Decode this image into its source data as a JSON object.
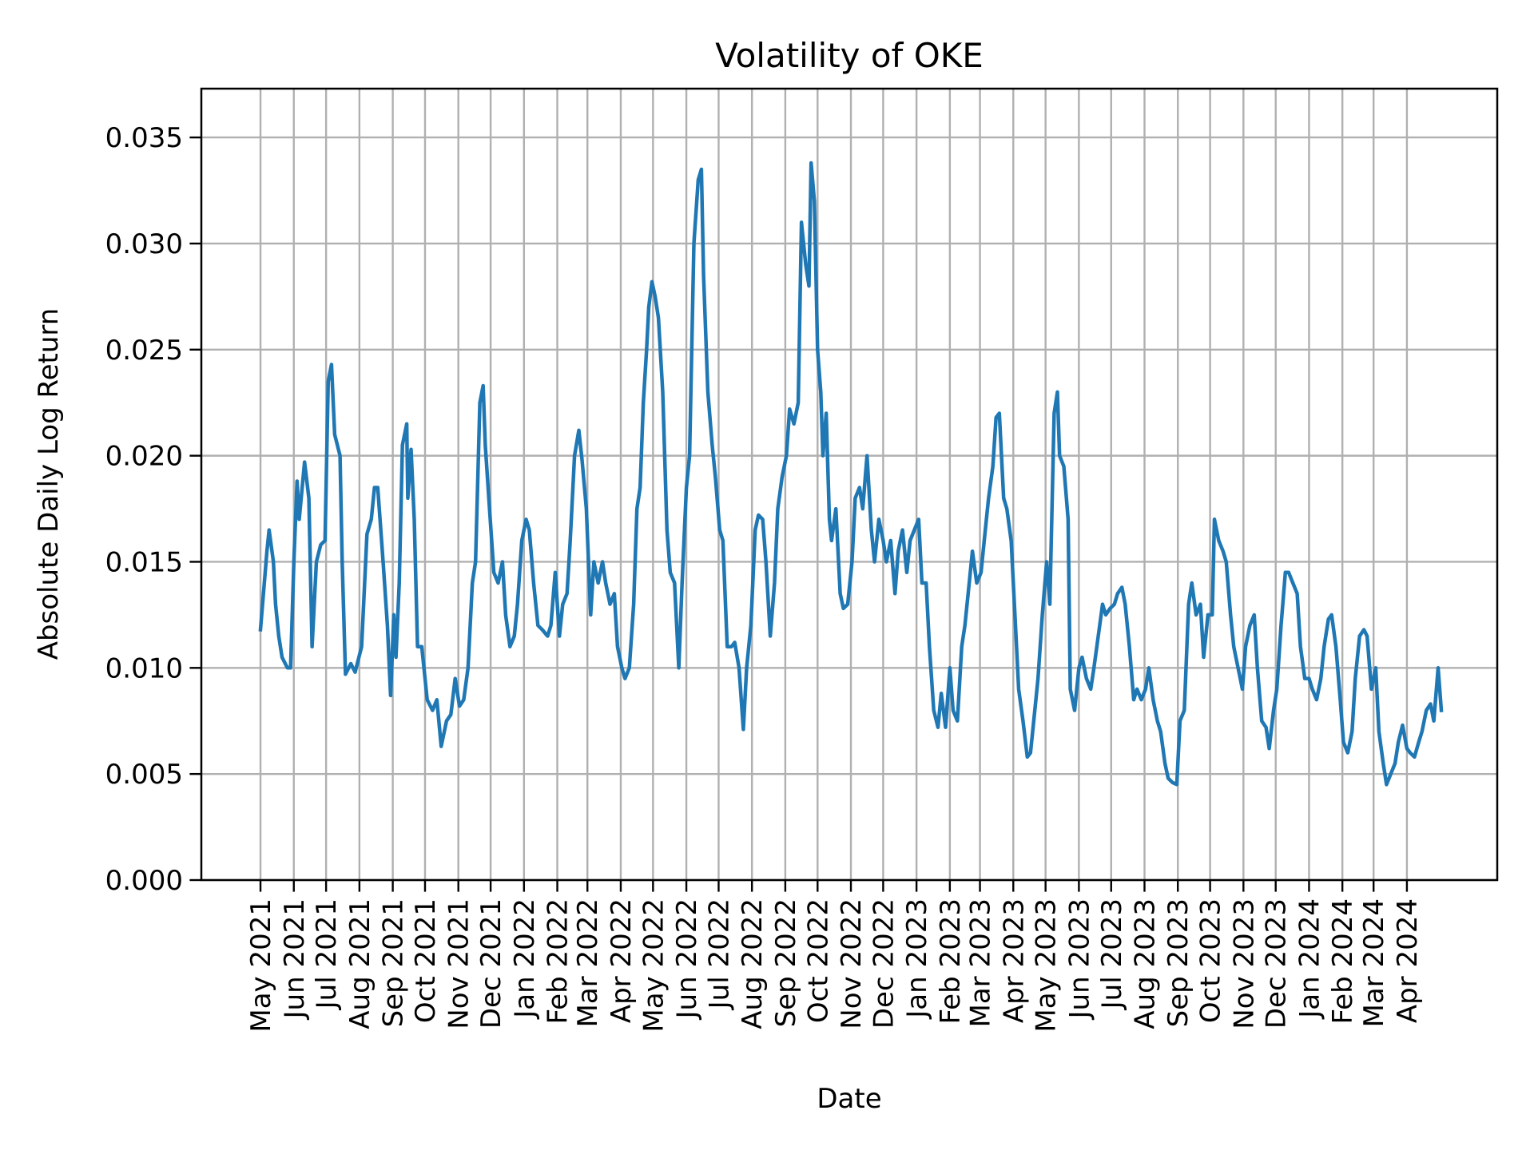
{
  "chart_data": {
    "type": "line",
    "title": "Volatility of OKE",
    "xlabel": "Date",
    "ylabel": "Absolute Daily Log Return",
    "x_origin": "2021-05-01",
    "x_unit": "days since x_origin",
    "xlim_days": [
      -55,
      1150
    ],
    "ylim": [
      0,
      0.0373
    ],
    "grid": true,
    "line_color": "#1f77b4",
    "yticks": [
      {
        "value": 0.0,
        "label": "0.000"
      },
      {
        "value": 0.005,
        "label": "0.005"
      },
      {
        "value": 0.01,
        "label": "0.010"
      },
      {
        "value": 0.015,
        "label": "0.015"
      },
      {
        "value": 0.02,
        "label": "0.020"
      },
      {
        "value": 0.025,
        "label": "0.025"
      },
      {
        "value": 0.03,
        "label": "0.030"
      },
      {
        "value": 0.035,
        "label": "0.035"
      }
    ],
    "xticks": [
      {
        "date": "2021-05-01",
        "label": "May 2021"
      },
      {
        "date": "2021-06-01",
        "label": "Jun 2021"
      },
      {
        "date": "2021-07-01",
        "label": "Jul 2021"
      },
      {
        "date": "2021-08-01",
        "label": "Aug 2021"
      },
      {
        "date": "2021-09-01",
        "label": "Sep 2021"
      },
      {
        "date": "2021-10-01",
        "label": "Oct 2021"
      },
      {
        "date": "2021-11-01",
        "label": "Nov 2021"
      },
      {
        "date": "2021-12-01",
        "label": "Dec 2021"
      },
      {
        "date": "2022-01-01",
        "label": "Jan 2022"
      },
      {
        "date": "2022-02-01",
        "label": "Feb 2022"
      },
      {
        "date": "2022-03-01",
        "label": "Mar 2022"
      },
      {
        "date": "2022-04-01",
        "label": "Apr 2022"
      },
      {
        "date": "2022-05-01",
        "label": "May 2022"
      },
      {
        "date": "2022-06-01",
        "label": "Jun 2022"
      },
      {
        "date": "2022-07-01",
        "label": "Jul 2022"
      },
      {
        "date": "2022-08-01",
        "label": "Aug 2022"
      },
      {
        "date": "2022-09-01",
        "label": "Sep 2022"
      },
      {
        "date": "2022-10-01",
        "label": "Oct 2022"
      },
      {
        "date": "2022-11-01",
        "label": "Nov 2022"
      },
      {
        "date": "2022-12-01",
        "label": "Dec 2022"
      },
      {
        "date": "2023-01-01",
        "label": "Jan 2023"
      },
      {
        "date": "2023-02-01",
        "label": "Feb 2023"
      },
      {
        "date": "2023-03-01",
        "label": "Mar 2023"
      },
      {
        "date": "2023-04-01",
        "label": "Apr 2023"
      },
      {
        "date": "2023-05-01",
        "label": "May 2023"
      },
      {
        "date": "2023-06-01",
        "label": "Jun 2023"
      },
      {
        "date": "2023-07-01",
        "label": "Jul 2023"
      },
      {
        "date": "2023-08-01",
        "label": "Aug 2023"
      },
      {
        "date": "2023-09-01",
        "label": "Sep 2023"
      },
      {
        "date": "2023-10-01",
        "label": "Oct 2023"
      },
      {
        "date": "2023-11-01",
        "label": "Nov 2023"
      },
      {
        "date": "2023-12-01",
        "label": "Dec 2023"
      },
      {
        "date": "2024-01-01",
        "label": "Jan 2024"
      },
      {
        "date": "2024-02-01",
        "label": "Feb 2024"
      },
      {
        "date": "2024-03-01",
        "label": "Mar 2024"
      },
      {
        "date": "2024-04-01",
        "label": "Apr 2024"
      }
    ],
    "series": [
      {
        "name": "OKE volatility",
        "x": [
          0,
          6,
          8,
          12,
          14,
          17,
          20,
          25,
          28,
          31,
          34,
          36,
          41,
          45,
          48,
          52,
          56,
          60,
          63,
          66,
          69,
          74,
          76,
          79,
          84,
          88,
          94,
          99,
          103,
          106,
          109,
          114,
          118,
          121,
          124,
          126,
          129,
          132,
          136,
          137,
          140,
          143,
          146,
          150,
          155,
          160,
          164,
          168,
          173,
          177,
          181,
          185,
          189,
          193,
          197,
          200,
          204,
          207,
          209,
          213,
          217,
          221,
          225,
          228,
          232,
          236,
          239,
          243,
          247,
          250,
          254,
          258,
          262,
          267,
          270,
          274,
          278,
          281,
          285,
          288,
          292,
          296,
          299,
          303,
          307,
          310,
          314,
          318,
          321,
          325,
          329,
          332,
          336,
          339,
          343,
          347,
          350,
          353,
          356,
          359,
          361,
          364,
          367,
          370,
          374,
          378,
          381,
          385,
          389,
          392,
          396,
          399,
          403,
          407,
          410,
          412,
          416,
          420,
          423,
          427,
          430,
          434,
          438,
          441,
          445,
          449,
          452,
          456,
          460,
          463,
          467,
          470,
          474,
          478,
          481,
          485,
          489,
          492,
          496,
          500,
          503,
          507,
          510,
          512,
          515,
          518,
          521,
          523,
          526,
          529,
          531,
          535,
          539,
          542,
          546,
          550,
          553,
          557,
          560,
          564,
          568,
          571,
          575,
          579,
          582,
          586,
          590,
          593,
          597,
          601,
          604,
          608,
          612,
          615,
          619,
          622,
          626,
          630,
          633,
          637,
          641,
          644,
          648,
          652,
          655,
          659,
          662,
          666,
          670,
          673,
          677,
          681,
          684,
          687,
          691,
          694,
          698,
          702,
          705,
          709,
          713,
          716,
          720,
          723,
          727,
          731,
          734,
          738,
          741,
          743,
          747,
          751,
          753,
          757,
          761,
          764,
          768,
          772,
          775,
          779,
          783,
          786,
          790,
          794,
          797,
          801,
          804,
          808,
          812,
          815,
          819,
          823,
          826,
          830,
          834,
          837,
          841,
          844,
          848,
          852,
          855,
          859,
          863,
          866,
          870,
          874,
          877,
          881,
          885,
          887,
          891,
          895,
          898,
          902,
          905,
          909,
          913,
          916,
          920,
          924,
          927,
          931,
          935,
          938,
          942,
          945,
          949,
          953,
          956,
          960,
          964,
          967,
          971,
          975,
          978,
          982,
          986,
          989,
          993,
          996,
          1000,
          1004,
          1007,
          1011,
          1015,
          1018,
          1022,
          1026,
          1029,
          1033,
          1037,
          1040,
          1044,
          1047,
          1051,
          1055,
          1058,
          1062,
          1066,
          1069,
          1073,
          1077,
          1080,
          1084,
          1088,
          1091,
          1095,
          1098
        ],
        "values": [
          0.0118,
          0.0155,
          0.0165,
          0.015,
          0.013,
          0.0115,
          0.0105,
          0.01,
          0.01,
          0.015,
          0.0188,
          0.017,
          0.0197,
          0.018,
          0.011,
          0.015,
          0.0158,
          0.016,
          0.0235,
          0.0243,
          0.021,
          0.02,
          0.015,
          0.0097,
          0.0102,
          0.0098,
          0.011,
          0.0163,
          0.017,
          0.0185,
          0.0185,
          0.015,
          0.012,
          0.0087,
          0.0125,
          0.0105,
          0.014,
          0.0205,
          0.0215,
          0.018,
          0.0203,
          0.017,
          0.011,
          0.011,
          0.0085,
          0.008,
          0.0085,
          0.0063,
          0.0075,
          0.0078,
          0.0095,
          0.0082,
          0.0085,
          0.01,
          0.014,
          0.015,
          0.0225,
          0.0233,
          0.0205,
          0.0175,
          0.0145,
          0.014,
          0.015,
          0.0125,
          0.011,
          0.0115,
          0.013,
          0.016,
          0.017,
          0.0165,
          0.014,
          0.012,
          0.0118,
          0.0115,
          0.012,
          0.0145,
          0.0115,
          0.013,
          0.0135,
          0.016,
          0.02,
          0.0212,
          0.0198,
          0.0175,
          0.0125,
          0.015,
          0.014,
          0.015,
          0.014,
          0.013,
          0.0135,
          0.011,
          0.01,
          0.0095,
          0.01,
          0.013,
          0.0175,
          0.0185,
          0.0225,
          0.025,
          0.027,
          0.0282,
          0.0275,
          0.0265,
          0.023,
          0.0165,
          0.0145,
          0.014,
          0.01,
          0.014,
          0.0185,
          0.02,
          0.03,
          0.033,
          0.0335,
          0.0285,
          0.023,
          0.0205,
          0.019,
          0.0165,
          0.016,
          0.011,
          0.011,
          0.0112,
          0.01,
          0.0071,
          0.01,
          0.012,
          0.0165,
          0.0172,
          0.017,
          0.015,
          0.0115,
          0.014,
          0.0175,
          0.019,
          0.02,
          0.0222,
          0.0215,
          0.0225,
          0.031,
          0.029,
          0.028,
          0.0338,
          0.032,
          0.025,
          0.023,
          0.02,
          0.022,
          0.017,
          0.016,
          0.0175,
          0.0135,
          0.0128,
          0.013,
          0.015,
          0.018,
          0.0185,
          0.0175,
          0.02,
          0.0165,
          0.015,
          0.017,
          0.016,
          0.015,
          0.016,
          0.0135,
          0.0155,
          0.0165,
          0.0145,
          0.016,
          0.0165,
          0.017,
          0.014,
          0.014,
          0.011,
          0.008,
          0.0072,
          0.0088,
          0.0072,
          0.01,
          0.008,
          0.0075,
          0.011,
          0.012,
          0.014,
          0.0155,
          0.014,
          0.0145,
          0.016,
          0.018,
          0.0195,
          0.0218,
          0.022,
          0.018,
          0.0175,
          0.016,
          0.012,
          0.009,
          0.0075,
          0.0058,
          0.006,
          0.008,
          0.0095,
          0.0125,
          0.015,
          0.013,
          0.022,
          0.023,
          0.02,
          0.0195,
          0.017,
          0.009,
          0.008,
          0.01,
          0.0105,
          0.0095,
          0.009,
          0.01,
          0.0115,
          0.013,
          0.0125,
          0.0128,
          0.013,
          0.0135,
          0.0138,
          0.013,
          0.011,
          0.0085,
          0.009,
          0.0085,
          0.009,
          0.01,
          0.0085,
          0.0075,
          0.007,
          0.0055,
          0.0048,
          0.0046,
          0.0045,
          0.0075,
          0.008,
          0.013,
          0.014,
          0.0125,
          0.013,
          0.0105,
          0.0125,
          0.0125,
          0.017,
          0.016,
          0.0155,
          0.015,
          0.0125,
          0.011,
          0.01,
          0.009,
          0.011,
          0.012,
          0.0125,
          0.01,
          0.0075,
          0.0072,
          0.0062,
          0.008,
          0.009,
          0.012,
          0.0145,
          0.0145,
          0.014,
          0.0135,
          0.011,
          0.0095,
          0.0095,
          0.009,
          0.0085,
          0.0095,
          0.011,
          0.0123,
          0.0125,
          0.011,
          0.0085,
          0.0065,
          0.006,
          0.007,
          0.0095,
          0.0115,
          0.0118,
          0.0115,
          0.009,
          0.01,
          0.007,
          0.0055,
          0.0045,
          0.005,
          0.0055,
          0.0065,
          0.0073,
          0.0062,
          0.006,
          0.0058,
          0.0065,
          0.007,
          0.008,
          0.0083,
          0.0075,
          0.01,
          0.008
        ]
      }
    ]
  }
}
